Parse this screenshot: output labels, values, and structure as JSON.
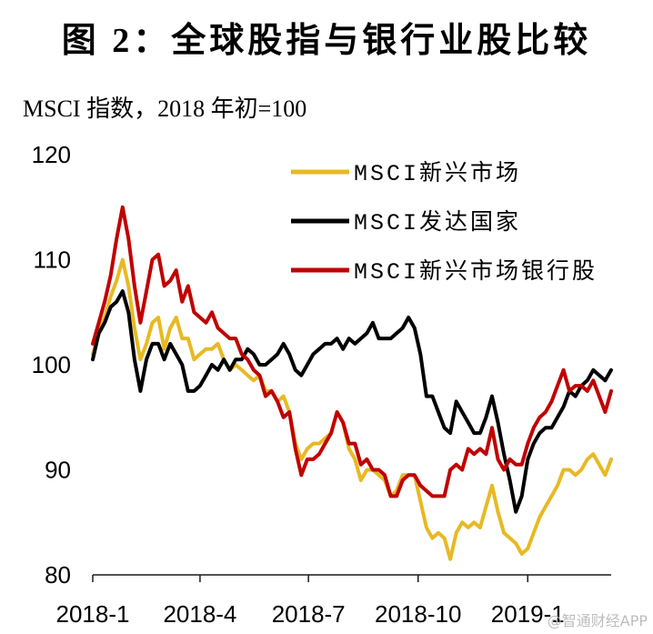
{
  "chart_data": {
    "type": "line",
    "title": "图 2：全球股指与银行业股比较",
    "subtitle": "MSCI 指数，2018 年初=100",
    "xlim": [
      "2018-01-01",
      "2019-03-12"
    ],
    "ylim": [
      80,
      120
    ],
    "y_ticks": [
      80,
      90,
      100,
      110,
      120
    ],
    "x_ticks": [
      {
        "value": "2018-01-01",
        "label": "2018-1"
      },
      {
        "value": "2018-04-01",
        "label": "2018-4"
      },
      {
        "value": "2018-07-01",
        "label": "2018-7"
      },
      {
        "value": "2018-10-01",
        "label": "2018-10"
      },
      {
        "value": "2019-01-01",
        "label": "2019-1"
      }
    ],
    "grid": false,
    "legend": {
      "position": "top-right"
    },
    "x": [
      "2018-01-01",
      "2018-01-06",
      "2018-01-11",
      "2018-01-16",
      "2018-01-21",
      "2018-01-26",
      "2018-01-31",
      "2018-02-05",
      "2018-02-10",
      "2018-02-15",
      "2018-02-20",
      "2018-02-25",
      "2018-03-02",
      "2018-03-07",
      "2018-03-12",
      "2018-03-17",
      "2018-03-22",
      "2018-03-27",
      "2018-04-01",
      "2018-04-06",
      "2018-04-11",
      "2018-04-16",
      "2018-04-21",
      "2018-04-26",
      "2018-05-01",
      "2018-05-06",
      "2018-05-11",
      "2018-05-16",
      "2018-05-21",
      "2018-05-26",
      "2018-05-31",
      "2018-06-05",
      "2018-06-10",
      "2018-06-15",
      "2018-06-20",
      "2018-06-25",
      "2018-06-30",
      "2018-07-05",
      "2018-07-10",
      "2018-07-15",
      "2018-07-20",
      "2018-07-25",
      "2018-07-30",
      "2018-08-04",
      "2018-08-09",
      "2018-08-14",
      "2018-08-19",
      "2018-08-24",
      "2018-08-29",
      "2018-09-03",
      "2018-09-08",
      "2018-09-13",
      "2018-09-18",
      "2018-09-23",
      "2018-09-28",
      "2018-10-03",
      "2018-10-08",
      "2018-10-13",
      "2018-10-18",
      "2018-10-23",
      "2018-10-28",
      "2018-11-02",
      "2018-11-07",
      "2018-11-12",
      "2018-11-17",
      "2018-11-22",
      "2018-11-27",
      "2018-12-02",
      "2018-12-07",
      "2018-12-12",
      "2018-12-17",
      "2018-12-22",
      "2018-12-27",
      "2019-01-01",
      "2019-01-06",
      "2019-01-11",
      "2019-01-16",
      "2019-01-21",
      "2019-01-26",
      "2019-01-31",
      "2019-02-05",
      "2019-02-10",
      "2019-02-15",
      "2019-02-20",
      "2019-02-25",
      "2019-03-02",
      "2019-03-07",
      "2019-03-12"
    ],
    "series": [
      {
        "name": "MSCI新兴市场",
        "color": "#E8B923",
        "values": [
          101,
          103,
          104.5,
          106.5,
          108,
          110,
          107.5,
          103.5,
          100.5,
          102,
          104,
          104.5,
          101.5,
          103.5,
          104.5,
          102.5,
          102.5,
          100.5,
          101,
          101.5,
          101.5,
          102,
          100.5,
          99.5,
          100,
          99.5,
          99,
          98.5,
          99,
          97.5,
          97.5,
          96.5,
          97,
          95.5,
          92.5,
          91,
          92,
          92.5,
          92.5,
          93,
          93.5,
          95.5,
          94.5,
          92,
          91,
          89,
          90,
          90,
          89.5,
          89,
          87.5,
          88,
          89.5,
          89.5,
          89.5,
          87,
          84.5,
          83.5,
          84,
          83.5,
          81.5,
          84,
          85,
          84.5,
          85,
          84.5,
          86.5,
          88.5,
          86,
          84,
          83.5,
          83,
          82,
          82.5,
          84,
          85.5,
          86.5,
          87.5,
          88.5,
          90,
          90,
          89.5,
          90,
          91,
          91.5,
          90.5,
          89.5,
          91
        ]
      },
      {
        "name": "MSCI发达国家",
        "color": "#000000",
        "values": [
          100.5,
          103,
          104,
          105.5,
          106,
          107,
          105,
          100.5,
          97.5,
          100.5,
          102,
          102,
          100.5,
          102,
          101,
          100,
          97.5,
          97.5,
          98,
          99,
          100,
          99.5,
          100.5,
          99.5,
          100.5,
          100.5,
          101.5,
          101,
          100,
          100,
          100.5,
          101,
          102,
          101,
          99.5,
          99,
          100,
          101,
          101.5,
          102,
          102,
          102.5,
          101.5,
          102.5,
          102,
          102.5,
          103,
          104,
          102.5,
          102.5,
          102.5,
          103,
          103.5,
          104.5,
          103.5,
          101,
          97,
          97,
          95.5,
          94,
          93.5,
          96.5,
          95.5,
          94.5,
          93.5,
          93.5,
          95,
          97,
          94.5,
          91.5,
          89,
          86,
          87.5,
          91,
          92.5,
          93.5,
          94,
          94,
          95,
          96,
          97.5,
          97,
          98,
          98.5,
          99.5,
          99,
          98.5,
          99.5
        ]
      },
      {
        "name": "MSCI新兴市场银行股",
        "color": "#C00000",
        "values": [
          102,
          104,
          106,
          108.5,
          112,
          115,
          112,
          107.5,
          104,
          107,
          110,
          110.5,
          107.5,
          108,
          109,
          106,
          107.5,
          105,
          104.5,
          104,
          105,
          103.5,
          103,
          102.5,
          102.5,
          101,
          100.5,
          99.5,
          99,
          97,
          97.5,
          96.5,
          95,
          95.5,
          92,
          89.5,
          91,
          91,
          91.5,
          92.5,
          93.5,
          95.5,
          94.5,
          92.5,
          92.5,
          90.5,
          91,
          90,
          90,
          89.5,
          87.5,
          87.5,
          89,
          89.5,
          89.5,
          88.5,
          88,
          87.5,
          87.5,
          87.5,
          90,
          90.5,
          90,
          92,
          91.5,
          92,
          91.5,
          94,
          91,
          90,
          91,
          90.5,
          90.5,
          92.5,
          94,
          95,
          95.5,
          96.5,
          98,
          99.5,
          97.5,
          98,
          98,
          97.5,
          98.5,
          97,
          95.5,
          97.5
        ]
      }
    ]
  },
  "watermark": "@智通财经APP"
}
